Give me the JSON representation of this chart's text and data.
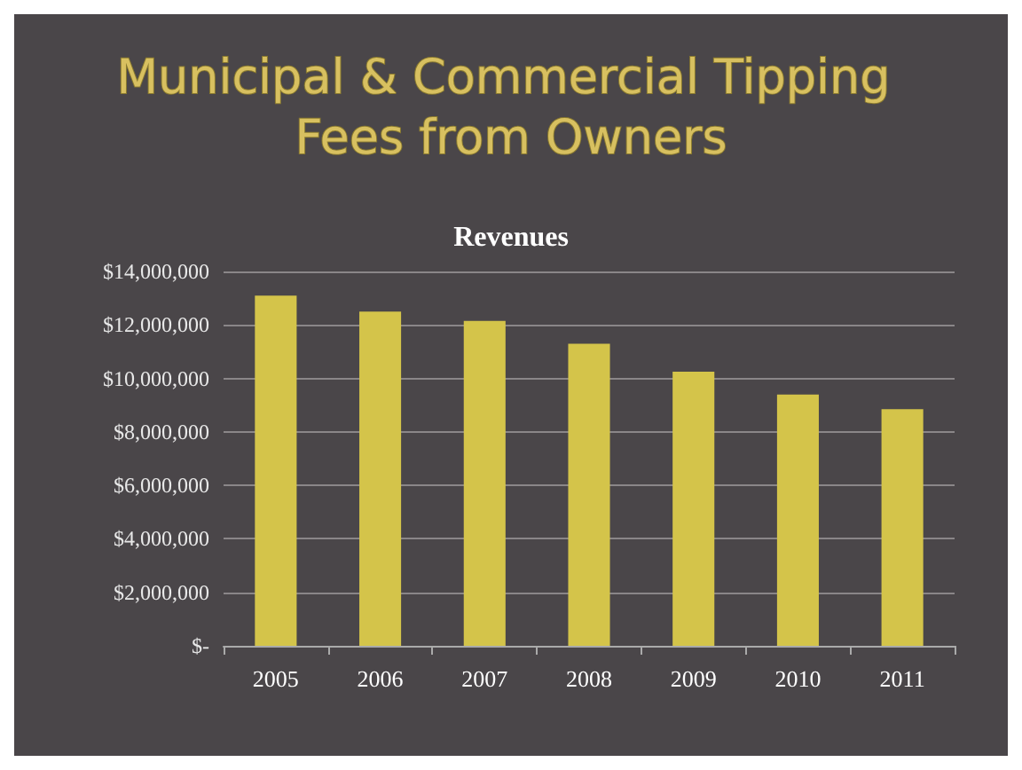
{
  "chart_data": {
    "type": "bar",
    "title": "Municipal & Commercial Tipping Fees from Owners",
    "subtitle": "Revenues",
    "categories": [
      "2005",
      "2006",
      "2007",
      "2008",
      "2009",
      "2010",
      "2011"
    ],
    "values": [
      13100000,
      12500000,
      12150000,
      11300000,
      10250000,
      9400000,
      8850000
    ],
    "color": "#d4c44a",
    "ylim": [
      0,
      14000000
    ],
    "yticks": [
      {
        "value": 0,
        "label": "$-"
      },
      {
        "value": 2000000,
        "label": "$2,000,000"
      },
      {
        "value": 4000000,
        "label": "$4,000,000"
      },
      {
        "value": 6000000,
        "label": "$6,000,000"
      },
      {
        "value": 8000000,
        "label": "$8,000,000"
      },
      {
        "value": 10000000,
        "label": "$10,000,000"
      },
      {
        "value": 12000000,
        "label": "$12,000,000"
      },
      {
        "value": 14000000,
        "label": "$14,000,000"
      }
    ],
    "grid": "y"
  }
}
